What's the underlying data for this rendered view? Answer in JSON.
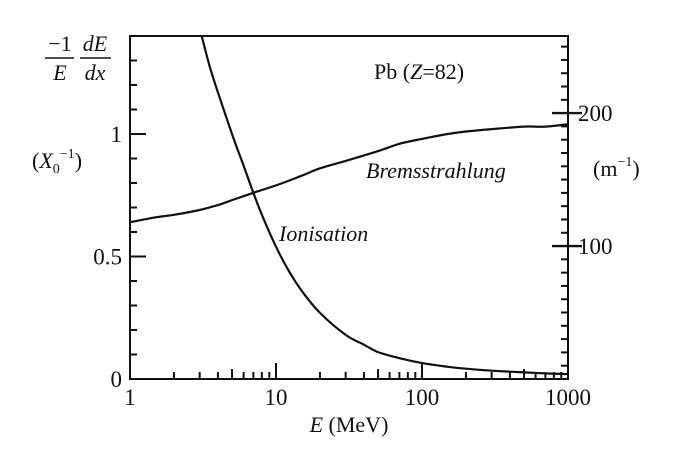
{
  "chart_data": {
    "type": "line",
    "x_scale": "log",
    "xlim": [
      1,
      1000
    ],
    "ylim_left": [
      0,
      1.4
    ],
    "ylim_right": [
      0,
      258
    ],
    "grid": false,
    "x_ticks": [
      {
        "value": 1,
        "label": "1"
      },
      {
        "value": 10,
        "label": "10"
      },
      {
        "value": 100,
        "label": "100"
      },
      {
        "value": 1000,
        "label": "1000"
      }
    ],
    "y_ticks_left": [
      {
        "value": 0,
        "label": "0"
      },
      {
        "value": 0.5,
        "label": "0.5"
      },
      {
        "value": 1,
        "label": "1"
      }
    ],
    "y_ticks_right": [
      {
        "value": 100,
        "label": "100"
      },
      {
        "value": 200,
        "label": "200"
      }
    ],
    "xlabel": {
      "var": "E",
      "rest": " (MeV)"
    },
    "ylabel_left": {
      "numerator_a": "−1",
      "denominator_a": "E",
      "numerator_b": "dE",
      "denominator_b": "dx",
      "unit_open": "(",
      "unit_var": "X",
      "unit_sub": "0",
      "unit_sup": "−1",
      "unit_close": ")"
    },
    "ylabel_right": {
      "base": "(m",
      "sup": "−1",
      "close": ")"
    },
    "annotation": {
      "pre": "Pb (",
      "var": "Z",
      "post": "=82)"
    },
    "series": [
      {
        "name": "Bremsstrahlung",
        "x": [
          1,
          1.5,
          2,
          3,
          4,
          5,
          7,
          10,
          15,
          20,
          30,
          50,
          70,
          100,
          150,
          200,
          300,
          500,
          700,
          1000
        ],
        "y": [
          0.64,
          0.66,
          0.67,
          0.69,
          0.71,
          0.73,
          0.76,
          0.79,
          0.83,
          0.86,
          0.89,
          0.93,
          0.96,
          0.98,
          1.0,
          1.01,
          1.02,
          1.03,
          1.03,
          1.04
        ]
      },
      {
        "name": "Ionisation",
        "x": [
          3.1,
          3.5,
          4,
          5,
          6,
          7,
          8,
          10,
          12,
          15,
          20,
          30,
          40,
          50,
          70,
          100,
          150,
          200,
          300,
          500,
          700,
          1000
        ],
        "y": [
          1.4,
          1.28,
          1.17,
          1.0,
          0.87,
          0.76,
          0.67,
          0.54,
          0.45,
          0.36,
          0.27,
          0.18,
          0.14,
          0.11,
          0.085,
          0.065,
          0.05,
          0.042,
          0.034,
          0.027,
          0.023,
          0.02
        ]
      }
    ]
  }
}
